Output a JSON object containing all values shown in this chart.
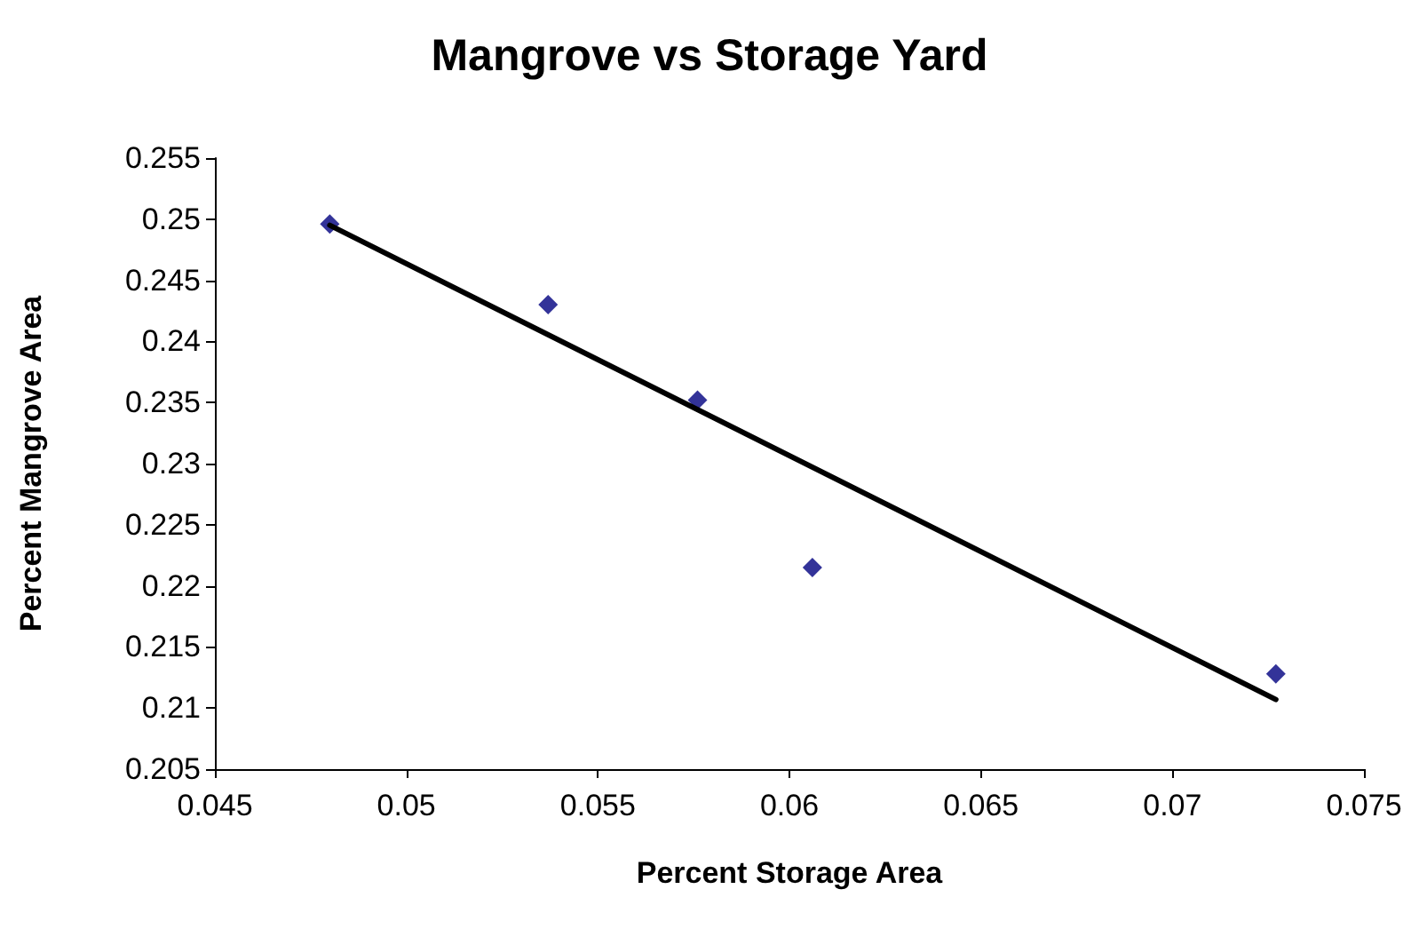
{
  "chart_data": {
    "type": "scatter",
    "title": "Mangrove vs Storage Yard",
    "xlabel": "Percent Storage Area",
    "ylabel": "Percent Mangrove Area",
    "series": [
      {
        "color": "#000080",
        "marker": "diamond",
        "x": [
          0.048,
          0.0537,
          0.0576,
          0.0606,
          0.0727
        ],
        "values": [
          0.2496,
          0.243,
          0.2352,
          0.2215,
          0.2128
        ]
      },
      {
        "type": "line",
        "color": "#000000",
        "marker": "none",
        "line_style": "solid",
        "x": [
          0.048,
          0.0727
        ],
        "values": [
          0.2495,
          0.2107
        ]
      }
    ],
    "xlim": [
      0.045,
      0.075
    ],
    "xticks": [
      0.045,
      0.05,
      0.055,
      0.06,
      0.065,
      0.07,
      0.075
    ],
    "ylim": [
      0.205,
      0.255
    ],
    "yticks": [
      0.205,
      0.21,
      0.215,
      0.22,
      0.225,
      0.23,
      0.235,
      0.24,
      0.245,
      0.25,
      0.255
    ],
    "grid": false
  }
}
